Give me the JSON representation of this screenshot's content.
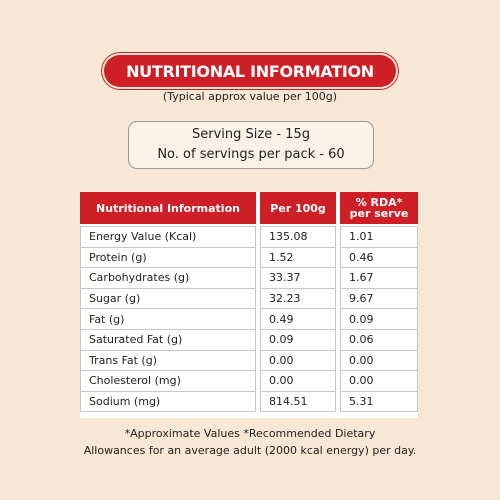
{
  "title": "NUTRITIONAL INFORMATION",
  "subtitle": "(Typical approx value per 100g)",
  "serving": {
    "size": "Serving Size - 15g",
    "servings": "No. of servings per pack - 60"
  },
  "table": {
    "header": [
      "Nutritional Information",
      "Per 100g",
      [
        "% RDA*",
        "per serve"
      ]
    ],
    "rows": [
      [
        "Energy Value (Kcal)",
        "135.08",
        "1.01"
      ],
      [
        "Protein (g)",
        "1.52",
        "0.46"
      ],
      [
        "Carbohydrates (g)",
        "33.37",
        "1.67"
      ],
      [
        "Sugar (g)",
        "32.23",
        "9.67"
      ],
      [
        "Fat (g)",
        "0.49",
        "0.09"
      ],
      [
        "Saturated Fat (g)",
        "0.09",
        "0.06"
      ],
      [
        "Trans Fat (g)",
        "0.00",
        "0.00"
      ],
      [
        "Cholesterol (mg)",
        "0.00",
        "0.00"
      ],
      [
        "Sodium (mg)",
        "814.51",
        "5.31"
      ]
    ]
  },
  "footnote": [
    "*Approximate Values *Recommended Dietary",
    "Allowances for an average adult (2000 kcal energy) per day."
  ]
}
